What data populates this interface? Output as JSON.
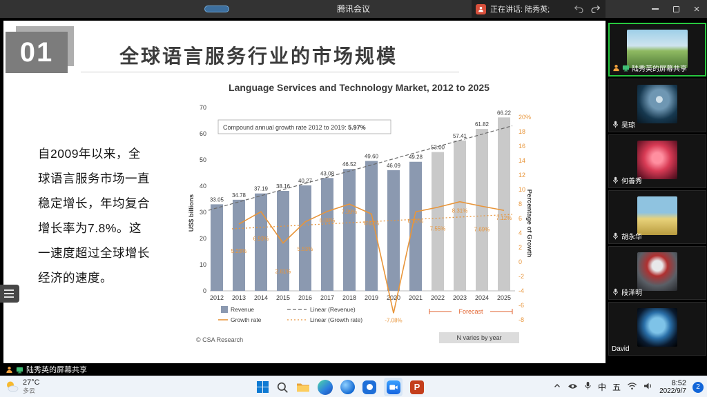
{
  "titlebar": {
    "app_title": "腾讯会议",
    "speaking_text": "正在讲话: 陆秀英;"
  },
  "slide": {
    "number": "01",
    "title": "全球语言服务行业的市场规模",
    "body": "自2009年以来，全球语言服务市场一直稳定增长，年均复合增长率为7.8%。这一速度超过全球增长经济的速度。",
    "body_lines": [
      "自2009年以来，全",
      "球语言服务市场一直",
      "稳定增长，年均复合",
      "增长率为7.8%。这",
      "一速度超过全球增长",
      "经济的速度。"
    ]
  },
  "share_banner": {
    "label": "陆秀英的屏幕共享"
  },
  "chart_data": {
    "type": "bar",
    "title": "Language Services and Technology Market, 2012 to 2025",
    "categories": [
      2012,
      2013,
      2014,
      2015,
      2016,
      2017,
      2018,
      2019,
      2020,
      2021,
      2022,
      2023,
      2024,
      2025
    ],
    "series": [
      {
        "name": "Revenue",
        "type": "bar",
        "color": "#8b99b0",
        "forecast_color": "#c9c9c9",
        "values": [
          33.05,
          34.78,
          37.19,
          38.16,
          40.27,
          43.08,
          46.52,
          49.6,
          46.09,
          49.28,
          53.0,
          57.41,
          61.82,
          66.22
        ]
      },
      {
        "name": "Growth rate",
        "type": "line",
        "color": "#e8953a",
        "values": [
          null,
          5.23,
          6.93,
          2.61,
          5.53,
          6.98,
          7.99,
          6.62,
          -7.08,
          6.92,
          7.55,
          8.31,
          7.69,
          7.12
        ]
      }
    ],
    "legend": [
      "Revenue",
      "Growth rate",
      "Linear (Revenue)",
      "Linear (Growth rate)"
    ],
    "legend_position": "bottom-left",
    "grid": false,
    "annotation": {
      "label": "Compound annual growth rate 2012 to 2019:",
      "value": "5.97%"
    },
    "axes": {
      "left_label": "US$ billions",
      "left_lim": [
        0,
        70
      ],
      "left_ticks": [
        0,
        10,
        20,
        30,
        40,
        50,
        60,
        70
      ],
      "right_label": "Percentage of Growth",
      "right_lim": [
        -8,
        20
      ],
      "right_ticks": [
        "20%",
        "18",
        "16",
        "14",
        "12",
        "10",
        "8",
        "6",
        "4",
        "2",
        "0",
        "-2",
        "-4",
        "-6",
        "-8"
      ]
    },
    "forecast": {
      "label": "Forecast",
      "from": 2022,
      "to": 2025
    },
    "source": "© CSA Research",
    "note": "N varies by year"
  },
  "participants": [
    {
      "name": "陆秀英的屏幕共享",
      "active": true,
      "sharing": true
    },
    {
      "name": "吴琼"
    },
    {
      "name": "何善秀"
    },
    {
      "name": "胡永华"
    },
    {
      "name": "段泽明"
    },
    {
      "name": "David"
    }
  ],
  "taskbar": {
    "weather": {
      "temp": "27°C",
      "desc": "多云"
    },
    "ime": {
      "lang": "中",
      "mode": "五"
    },
    "clock": {
      "time": "8:52",
      "date": "2022/9/7"
    },
    "notification_count": "2"
  }
}
